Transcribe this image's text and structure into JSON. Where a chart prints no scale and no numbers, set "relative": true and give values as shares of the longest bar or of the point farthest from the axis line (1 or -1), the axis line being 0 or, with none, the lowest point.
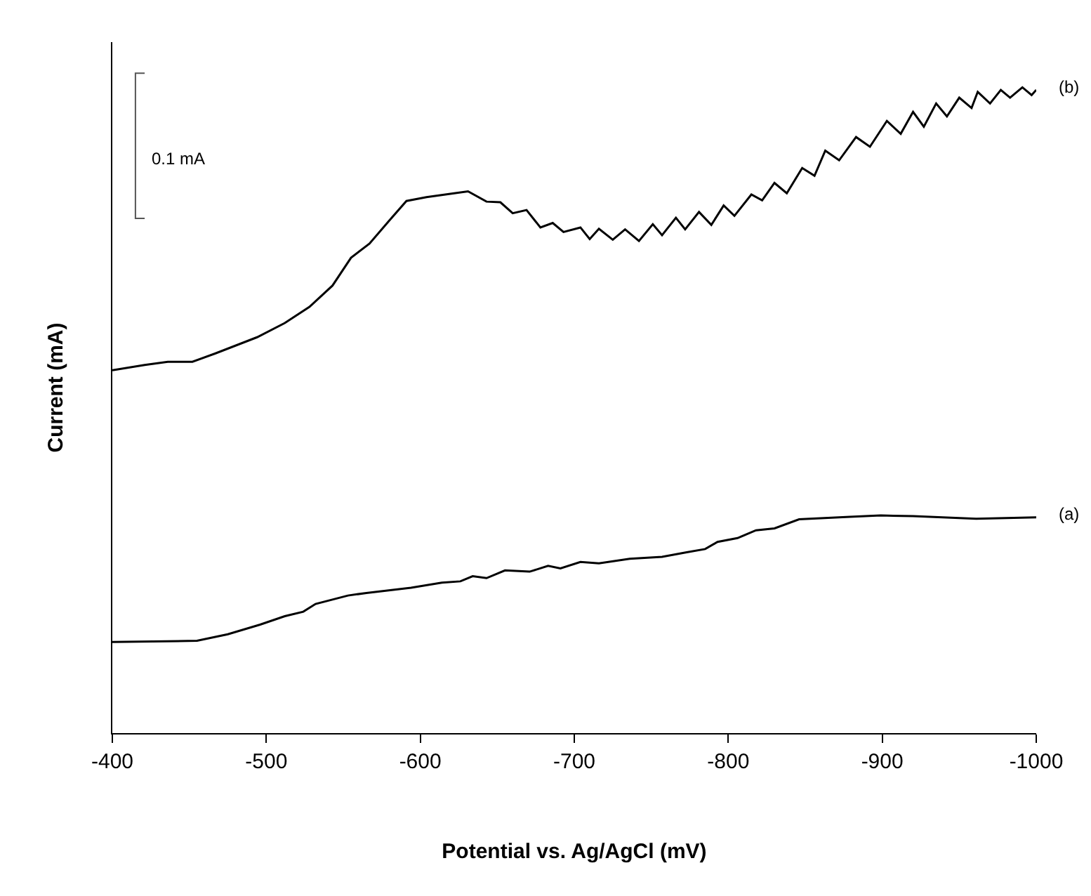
{
  "chart_data": {
    "type": "line",
    "relative": true,
    "xlabel": "Potential vs. Ag/AgCl (mV)",
    "ylabel": "Current (mA)",
    "xlim": [
      -400,
      -1000
    ],
    "xticks": [
      -400,
      -500,
      -600,
      -700,
      -800,
      -900,
      -1000
    ],
    "annotations": [
      "0.1 mA"
    ],
    "series": [
      {
        "name": "(a)",
        "color": "#000000",
        "x": [
          -400,
          -455,
          -475,
          -496,
          -512,
          -524,
          -532,
          -553,
          -565,
          -594,
          -614,
          -626,
          -634,
          -643,
          -655,
          -671,
          -683,
          -691,
          -704,
          -716,
          -736,
          -757,
          -773,
          -785,
          -793,
          -806,
          -818,
          -830,
          -846,
          -879,
          -899,
          -920,
          -961,
          -1000
        ],
        "values": [
          0.141,
          0.143,
          0.153,
          0.168,
          0.181,
          0.188,
          0.2,
          0.213,
          0.217,
          0.225,
          0.233,
          0.235,
          0.243,
          0.24,
          0.252,
          0.25,
          0.259,
          0.255,
          0.265,
          0.263,
          0.27,
          0.273,
          0.28,
          0.285,
          0.296,
          0.302,
          0.314,
          0.317,
          0.331,
          0.335,
          0.337,
          0.336,
          0.332,
          0.334
        ]
      },
      {
        "name": "(b)",
        "color": "#000000",
        "x": [
          -400,
          -421,
          -436,
          -452,
          -467,
          -494,
          -512,
          -528,
          -543,
          -555,
          -567,
          -580,
          -591,
          -604,
          -622,
          -631,
          -643,
          -652,
          -660,
          -669,
          -678,
          -686,
          -693,
          -704,
          -710,
          -716,
          -725,
          -733,
          -742,
          -751,
          -757,
          -766,
          -772,
          -781,
          -789,
          -797,
          -804,
          -815,
          -822,
          -830,
          -838,
          -848,
          -856,
          -863,
          -872,
          -883,
          -892,
          -903,
          -912,
          -920,
          -927,
          -935,
          -942,
          -950,
          -958,
          -962,
          -970,
          -977,
          -983,
          -991,
          -997,
          -1000
        ],
        "values": [
          0.562,
          0.57,
          0.575,
          0.575,
          0.588,
          0.613,
          0.635,
          0.66,
          0.693,
          0.736,
          0.758,
          0.794,
          0.824,
          0.83,
          0.836,
          0.839,
          0.823,
          0.822,
          0.805,
          0.81,
          0.783,
          0.79,
          0.776,
          0.783,
          0.765,
          0.781,
          0.764,
          0.78,
          0.762,
          0.788,
          0.771,
          0.798,
          0.78,
          0.807,
          0.787,
          0.817,
          0.801,
          0.834,
          0.825,
          0.852,
          0.836,
          0.875,
          0.863,
          0.902,
          0.887,
          0.923,
          0.908,
          0.948,
          0.928,
          0.962,
          0.939,
          0.975,
          0.955,
          0.984,
          0.968,
          0.993,
          0.975,
          0.996,
          0.984,
          1.0,
          0.988,
          0.996
        ]
      }
    ]
  }
}
